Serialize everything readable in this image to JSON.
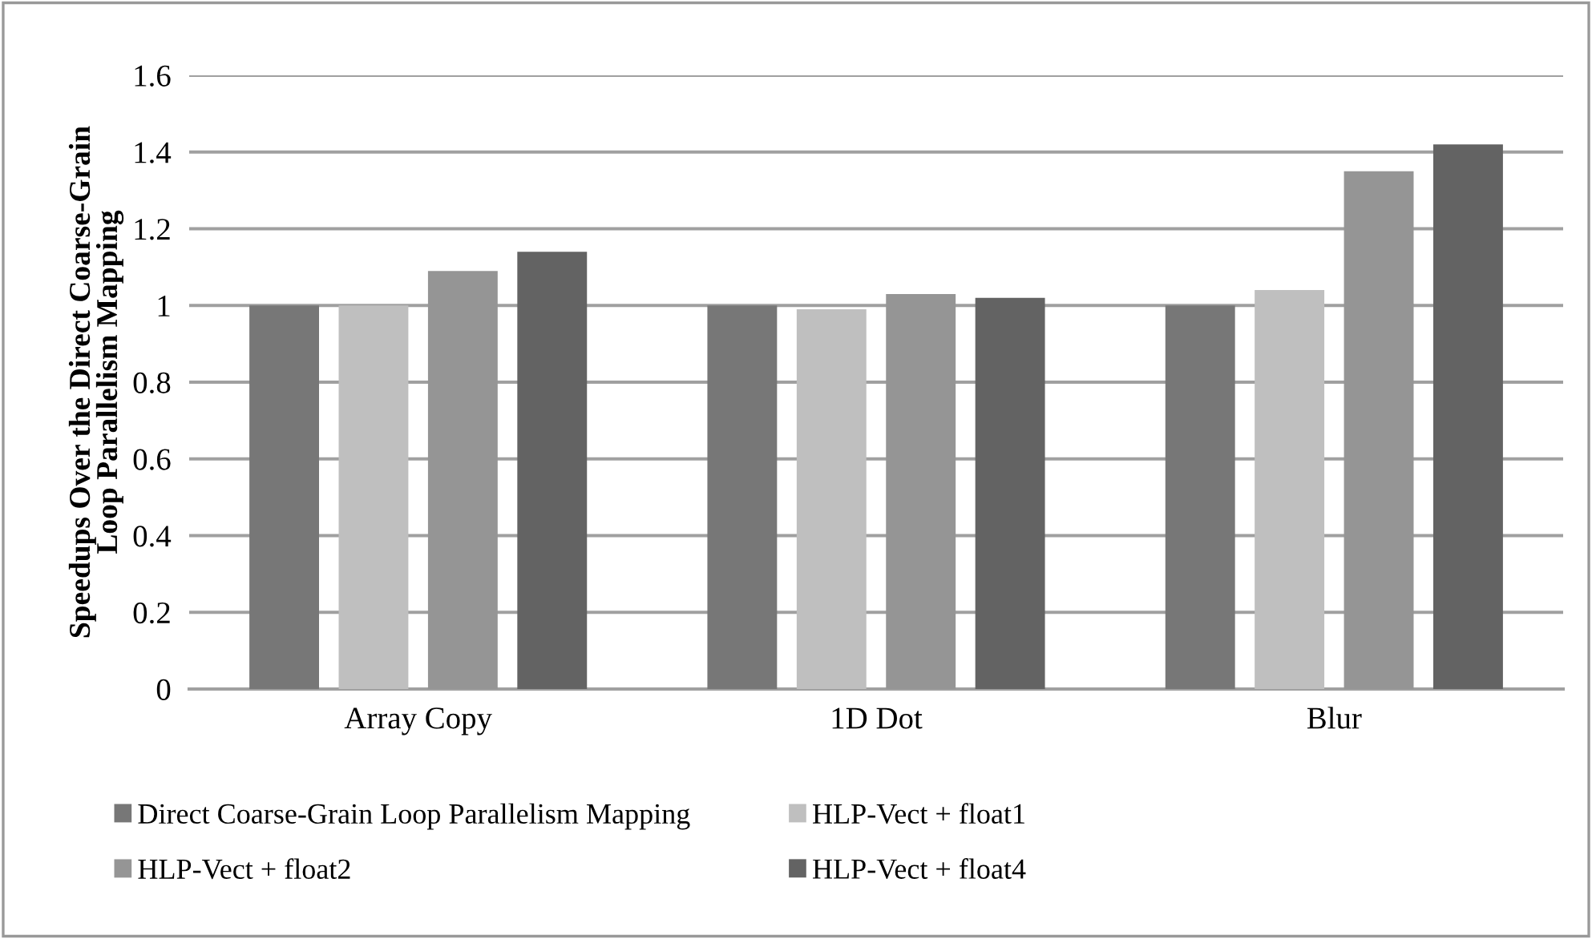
{
  "chart_data": {
    "type": "bar",
    "ylabel": "Speedups Over the Direct Coarse-Grain Loop Parallelism Mapping",
    "categories": [
      "Array Copy",
      "1D Dot",
      "Blur"
    ],
    "series": [
      {
        "name": "Direct Coarse-Grain Loop Parallelism Mapping",
        "color": "#777777",
        "values": [
          1.0,
          1.0,
          1.0
        ]
      },
      {
        "name": "HLP-Vect + float1",
        "color": "#bfbfbf",
        "values": [
          1.0,
          0.99,
          1.04
        ]
      },
      {
        "name": "HLP-Vect + float2",
        "color": "#959595",
        "values": [
          1.09,
          1.03,
          1.35
        ]
      },
      {
        "name": "HLP-Vect + float4",
        "color": "#636363",
        "values": [
          1.14,
          1.02,
          1.42
        ]
      }
    ],
    "ylim": [
      0,
      1.6
    ],
    "yticks": [
      0,
      0.2,
      0.4,
      0.6,
      0.8,
      1,
      1.2,
      1.4,
      1.6
    ],
    "grid": "y",
    "legend": "bottom"
  }
}
